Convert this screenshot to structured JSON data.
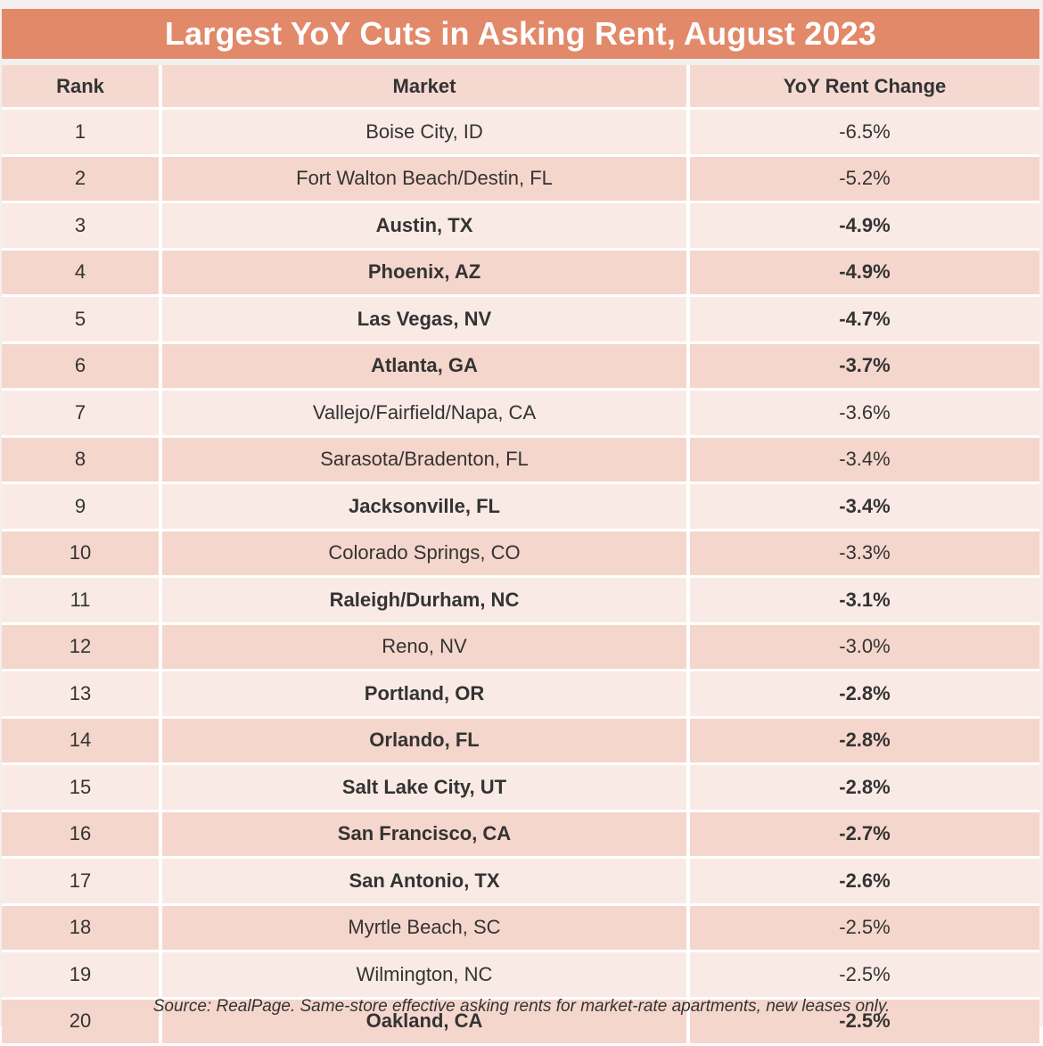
{
  "title": "Largest YoY Cuts in Asking Rent, August 2023",
  "headers": {
    "rank": "Rank",
    "market": "Market",
    "change": "YoY Rent Change"
  },
  "rows": [
    {
      "rank": "1",
      "market": "Boise City, ID",
      "change": "-6.5%",
      "bold": false
    },
    {
      "rank": "2",
      "market": "Fort Walton Beach/Destin, FL",
      "change": "-5.2%",
      "bold": false
    },
    {
      "rank": "3",
      "market": "Austin, TX",
      "change": "-4.9%",
      "bold": true
    },
    {
      "rank": "4",
      "market": "Phoenix, AZ",
      "change": "-4.9%",
      "bold": true
    },
    {
      "rank": "5",
      "market": "Las Vegas, NV",
      "change": "-4.7%",
      "bold": true
    },
    {
      "rank": "6",
      "market": "Atlanta, GA",
      "change": "-3.7%",
      "bold": true
    },
    {
      "rank": "7",
      "market": "Vallejo/Fairfield/Napa, CA",
      "change": "-3.6%",
      "bold": false
    },
    {
      "rank": "8",
      "market": "Sarasota/Bradenton, FL",
      "change": "-3.4%",
      "bold": false
    },
    {
      "rank": "9",
      "market": "Jacksonville, FL",
      "change": "-3.4%",
      "bold": true
    },
    {
      "rank": "10",
      "market": "Colorado Springs, CO",
      "change": "-3.3%",
      "bold": false
    },
    {
      "rank": "11",
      "market": "Raleigh/Durham, NC",
      "change": "-3.1%",
      "bold": true
    },
    {
      "rank": "12",
      "market": "Reno, NV",
      "change": "-3.0%",
      "bold": false
    },
    {
      "rank": "13",
      "market": "Portland, OR",
      "change": "-2.8%",
      "bold": true
    },
    {
      "rank": "14",
      "market": "Orlando, FL",
      "change": "-2.8%",
      "bold": true
    },
    {
      "rank": "15",
      "market": "Salt Lake City, UT",
      "change": "-2.8%",
      "bold": true
    },
    {
      "rank": "16",
      "market": "San Francisco, CA",
      "change": "-2.7%",
      "bold": true
    },
    {
      "rank": "17",
      "market": "San Antonio, TX",
      "change": "-2.6%",
      "bold": true
    },
    {
      "rank": "18",
      "market": "Myrtle Beach, SC",
      "change": "-2.5%",
      "bold": false
    },
    {
      "rank": "19",
      "market": "Wilmington, NC",
      "change": "-2.5%",
      "bold": false
    },
    {
      "rank": "20",
      "market": "Oakland, CA",
      "change": "-2.5%",
      "bold": true
    }
  ],
  "source": "Source: RealPage. Same-store effective asking rents for market-rate apartments, new leases only.",
  "colors": {
    "title_bar": "#e2896a",
    "header_bg": "#f5d9d0",
    "row_light": "#faeae5",
    "row_dark": "#f5d6cc",
    "text": "#333333"
  }
}
